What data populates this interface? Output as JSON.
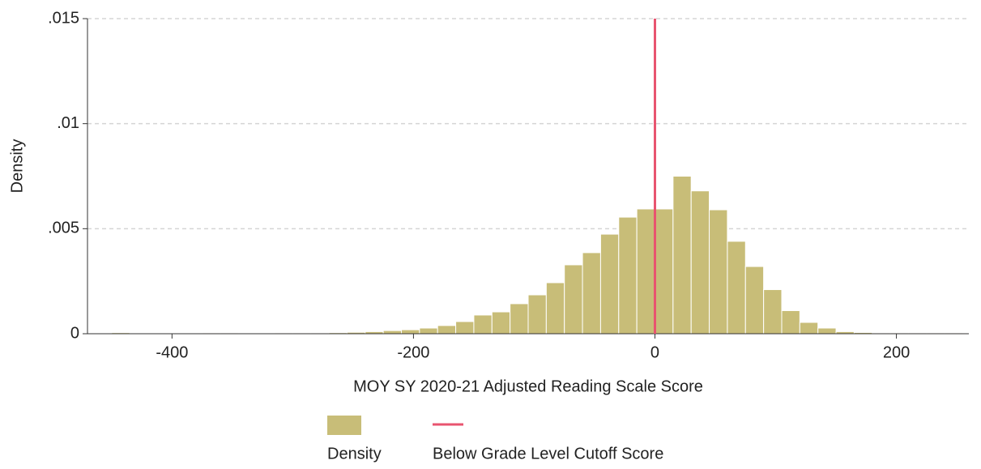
{
  "chart_data": {
    "type": "histogram",
    "x_label": "MOY SY 2020-21 Adjusted Reading Scale Score",
    "y_label": "Density",
    "bins": [
      -450,
      -435,
      -420,
      -405,
      -390,
      -375,
      -360,
      -345,
      -330,
      -315,
      -300,
      -285,
      -270,
      -255,
      -240,
      -225,
      -210,
      -195,
      -180,
      -165,
      -150,
      -135,
      -120,
      -105,
      -90,
      -75,
      -60,
      -45,
      -30,
      -15,
      0,
      15,
      30,
      45,
      60,
      75,
      90,
      105,
      120,
      135,
      150,
      165,
      180,
      195,
      210,
      225,
      240,
      255
    ],
    "series": [
      {
        "name": "Density",
        "color": "#c8bd78",
        "values": [
          5e-05,
          0,
          0,
          0,
          0,
          4e-05,
          4e-05,
          0,
          3e-05,
          4e-05,
          4e-05,
          4e-05,
          5e-05,
          7e-05,
          0.0001,
          0.00015,
          0.00019,
          0.00027,
          0.00039,
          0.00058,
          0.00089,
          0.00104,
          0.00143,
          0.00185,
          0.00243,
          0.00328,
          0.00386,
          0.00474,
          0.00555,
          0.00594,
          0.00594,
          0.0075,
          0.0068,
          0.0059,
          0.0044,
          0.0032,
          0.0021,
          0.0011,
          0.00054,
          0.00027,
          0.0001,
          6e-05,
          4e-05,
          4e-05,
          4e-05,
          4e-05,
          4e-05
        ]
      }
    ],
    "cutoff": {
      "name": "Below Grade Level Cutoff Score",
      "x": 0,
      "color": "#e8546f"
    },
    "xlim": [
      -470,
      260
    ],
    "xticks": [
      -400,
      -200,
      0,
      200
    ],
    "ylim": [
      0,
      0.015
    ],
    "yticks": [
      0,
      {
        "value": 0.005,
        "label": ".005"
      },
      {
        "value": 0.01,
        "label": ".01"
      },
      {
        "value": 0.015,
        "label": ".015"
      }
    ],
    "grid": true
  }
}
